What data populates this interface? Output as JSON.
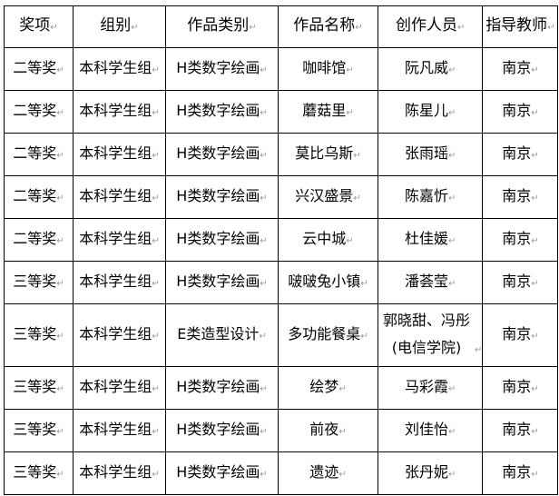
{
  "headers": [
    "奖项",
    "组别",
    "作品类别",
    "作品名称",
    "创作人员",
    "指导教师"
  ],
  "rows": [
    [
      "二等奖",
      "本科学生组",
      "H类数字绘画",
      "咖啡馆",
      "阮凡威",
      "南京"
    ],
    [
      "二等奖",
      "本科学生组",
      "H类数字绘画",
      "蘑菇里",
      "陈星儿",
      "南京"
    ],
    [
      "二等奖",
      "本科学生组",
      "H类数字绘画",
      "莫比乌斯",
      "张雨瑶",
      "南京"
    ],
    [
      "二等奖",
      "本科学生组",
      "H类数字绘画",
      "兴汉盛景",
      "陈嘉忻",
      "南京"
    ],
    [
      "二等奖",
      "本科学生组",
      "H类数字绘画",
      "云中城",
      "杜佳媛",
      "南京"
    ],
    [
      "三等奖",
      "本科学生组",
      "H类数字绘画",
      "啵啵兔小镇",
      "潘荟莹",
      "南京"
    ],
    [
      "三等奖",
      "本科学生组",
      "E类造型设计",
      "多功能餐桌",
      "郭晓甜、冯彤(电信学院)",
      "南京"
    ],
    [
      "三等奖",
      "本科学生组",
      "H类数字绘画",
      "绘梦",
      "马彩霞",
      "南京"
    ],
    [
      "三等奖",
      "本科学生组",
      "H类数字绘画",
      "前夜",
      "刘佳怡",
      "南京"
    ],
    [
      "三等奖",
      "本科学生组",
      "H类数字绘画",
      "遗迹",
      "张丹妮",
      "南京"
    ]
  ]
}
